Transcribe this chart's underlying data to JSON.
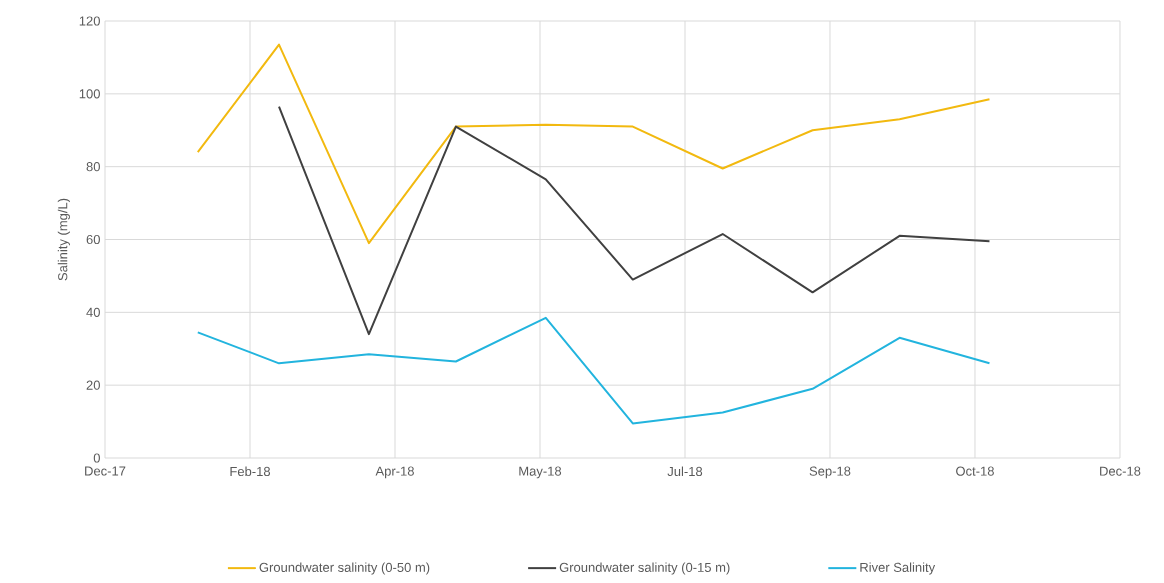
{
  "chart_data": {
    "type": "line",
    "ylabel": "Salinity (mg/L)",
    "x": [
      "2018-02-01",
      "2018-03-01",
      "2018-04-01",
      "2018-05-01",
      "2018-06-01",
      "2018-07-01",
      "2018-08-01",
      "2018-09-01",
      "2018-10-01",
      "2018-11-01"
    ],
    "series": [
      {
        "name": "Groundwater salinity (0-50 m)",
        "color": "#f2b90f",
        "values": [
          84,
          113.5,
          59,
          91,
          91.5,
          91,
          79.5,
          90,
          93,
          98.5
        ]
      },
      {
        "name": "Groundwater salinity (0-15 m)",
        "color": "#404040",
        "values": [
          null,
          96.5,
          34,
          91,
          76.5,
          49,
          61.5,
          45.5,
          61,
          59.5
        ]
      },
      {
        "name": "River Salinity",
        "color": "#22b4de",
        "values": [
          34.5,
          26,
          28.5,
          26.5,
          38.5,
          9.5,
          12.5,
          19,
          33,
          26
        ]
      }
    ],
    "xlim": [
      "2017-12-31",
      "2018-12-16"
    ],
    "xticks": [
      {
        "value": "2017-12-31",
        "label": "Dec-17"
      },
      {
        "value": "2018-02-19",
        "label": "Feb-18"
      },
      {
        "value": "2018-04-10",
        "label": "Apr-18"
      },
      {
        "value": "2018-05-30",
        "label": "May-18"
      },
      {
        "value": "2018-07-19",
        "label": "Jul-18"
      },
      {
        "value": "2018-09-07",
        "label": "Sep-18"
      },
      {
        "value": "2018-10-27",
        "label": "Oct-18"
      },
      {
        "value": "2018-12-16",
        "label": "Dec-18"
      }
    ],
    "ylim": [
      0,
      120
    ],
    "yticks": [
      0,
      20,
      40,
      60,
      80,
      100,
      120
    ],
    "grid": true,
    "legend": "bottom",
    "marker": "none",
    "line_style": "solid"
  }
}
